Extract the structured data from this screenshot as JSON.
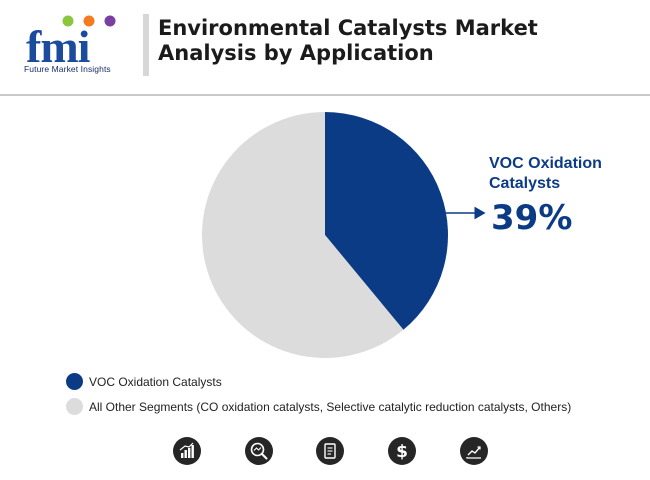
{
  "header": {
    "logo_text": "fmi",
    "logo_caption": "Future Market Insights",
    "title": "Environmental Catalysts Market Analysis by Application"
  },
  "colors": {
    "primary": "#0c3b86",
    "secondary": "#dcdcdc",
    "icon_dark": "#262626"
  },
  "chart_data": {
    "type": "pie",
    "title": "Environmental Catalysts Market Analysis by Application",
    "slices": [
      {
        "label": "VOC Oxidation Catalysts",
        "value": 39,
        "color": "#0c3b86"
      },
      {
        "label": "All Other Segments (CO oxidation catalysts, Selective catalytic reduction catalysts, Others)",
        "value": 61,
        "color": "#dcdcdc"
      }
    ],
    "callout": {
      "label": "VOC Oxidation Catalysts",
      "value_text": "39%"
    },
    "legend_position": "bottom-left"
  },
  "footer_icons": [
    {
      "name": "growth-chart-icon"
    },
    {
      "name": "magnifier-analytics-icon"
    },
    {
      "name": "report-document-icon"
    },
    {
      "name": "dollar-icon"
    },
    {
      "name": "trend-line-icon"
    }
  ]
}
